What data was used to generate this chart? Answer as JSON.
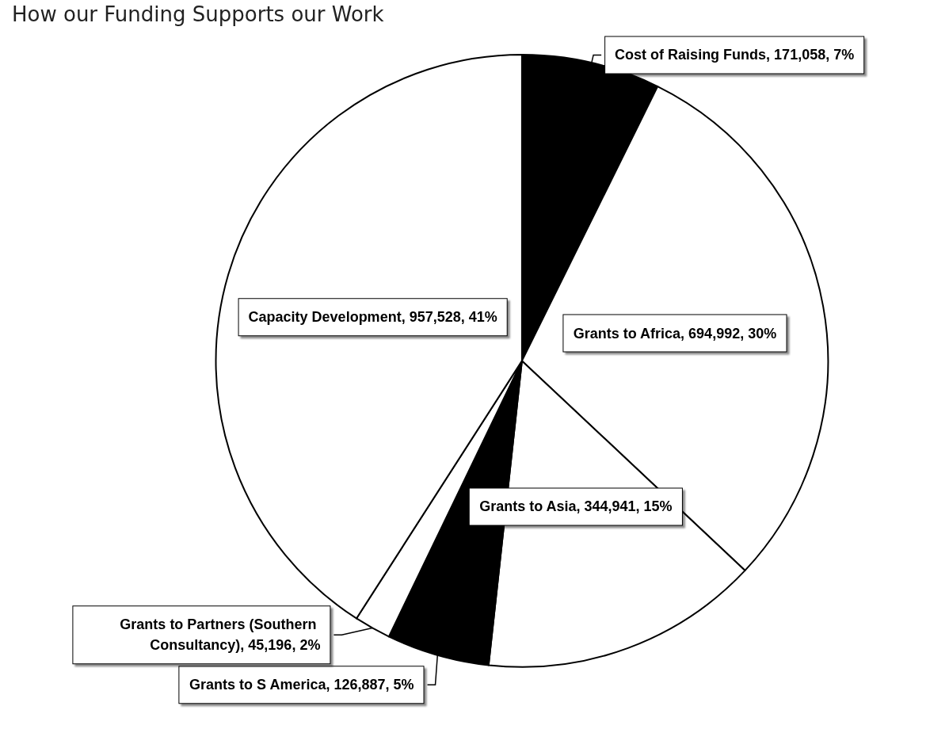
{
  "chart_data": {
    "type": "pie",
    "title": "How our Funding Supports our Work",
    "categories": [
      "Cost of Raising Funds",
      "Grants to Africa",
      "Grants to Asia",
      "Grants to S America",
      "Grants to Partners (Southern Consultancy)",
      "Capacity Development"
    ],
    "values": [
      171058,
      694992,
      344941,
      126887,
      45196,
      957528
    ],
    "colors": [
      "#000000",
      "#ffffff",
      "#ffffff",
      "#000000",
      "#ffffff",
      "#ffffff"
    ],
    "value_labels": [
      "171,058, 7%",
      "694,992, 30%",
      "344,941, 15%",
      "126,887, 5%",
      "45,196, 2%",
      "957,528, 41%"
    ],
    "legend": false
  }
}
